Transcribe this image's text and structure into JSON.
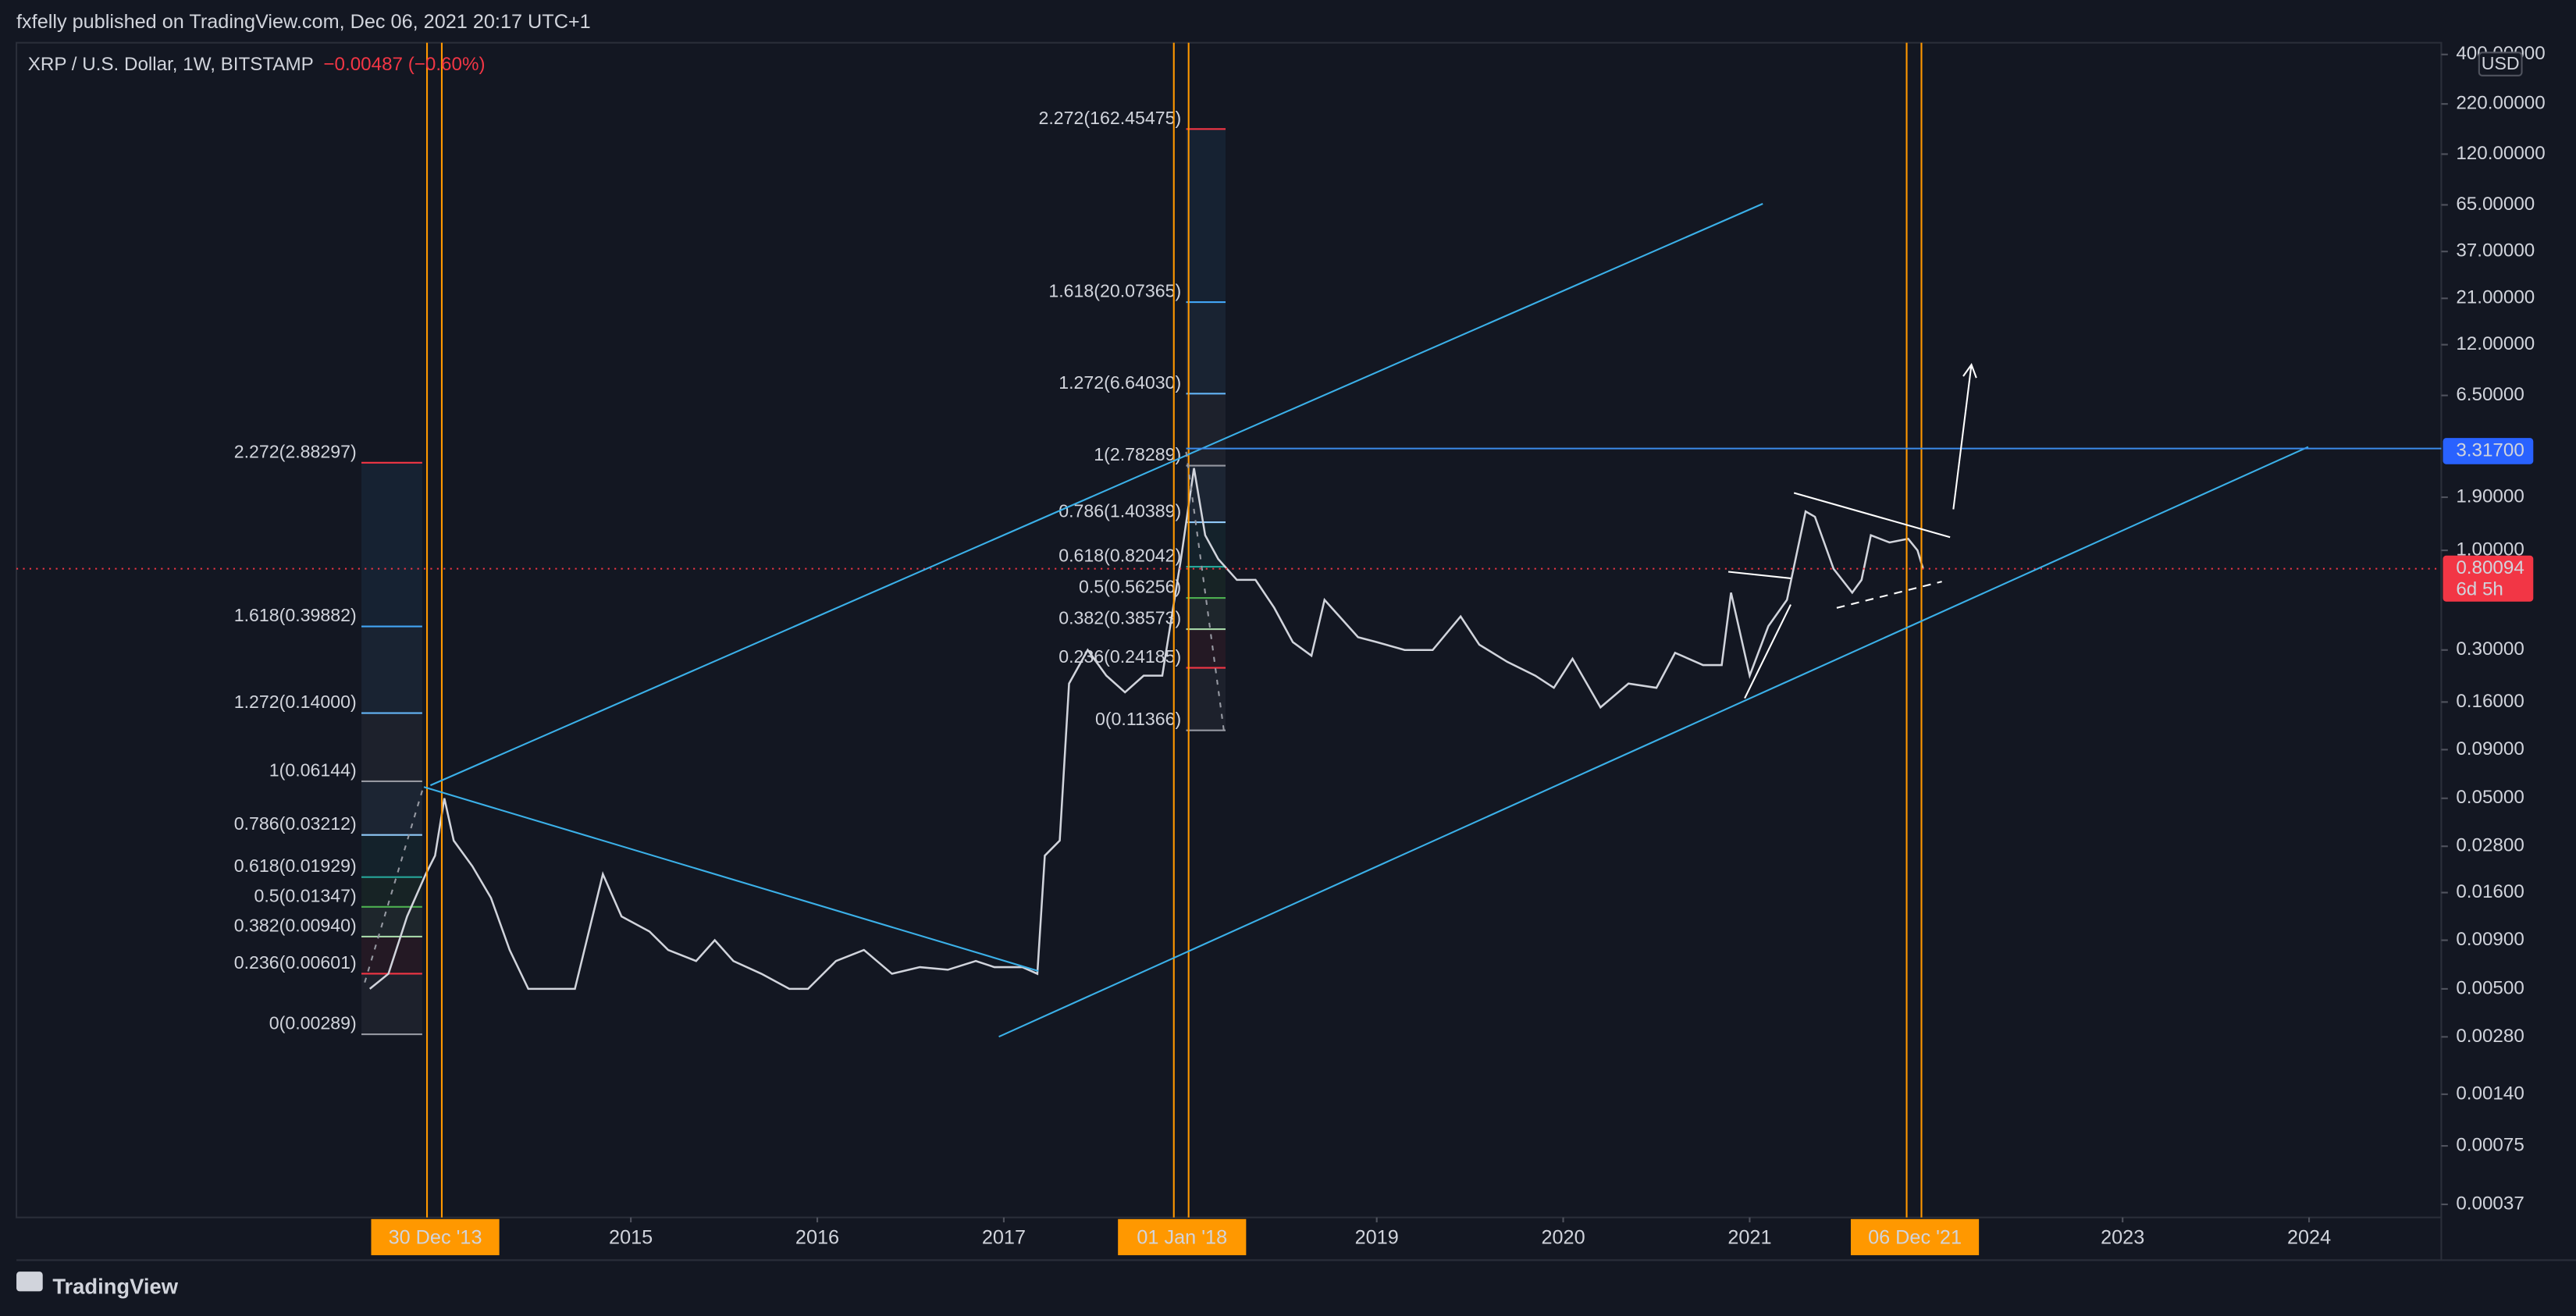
{
  "header": {
    "publisher": "fxfelly published on TradingView.com, Dec 06, 2021 20:17 UTC+1"
  },
  "chart_data": {
    "type": "line",
    "title": "XRP / U.S. Dollar, 1W, BITSTAMP",
    "change": "−0.00487 (−0.60%)",
    "currency": "USD",
    "log_scale": true,
    "color": "#d1d4dc",
    "x": [
      2013.6,
      2013.7,
      2013.8,
      2013.9,
      2013.95,
      2014.0,
      2014.05,
      2014.15,
      2014.25,
      2014.35,
      2014.45,
      2014.55,
      2014.7,
      2014.85,
      2014.95,
      2015.1,
      2015.2,
      2015.35,
      2015.45,
      2015.55,
      2015.7,
      2015.85,
      2015.95,
      2016.1,
      2016.25,
      2016.4,
      2016.55,
      2016.7,
      2016.85,
      2016.95,
      2017.1,
      2017.18,
      2017.22,
      2017.3,
      2017.35,
      2017.45,
      2017.55,
      2017.65,
      2017.75,
      2017.85,
      2017.95,
      2018.02,
      2018.08,
      2018.15,
      2018.25,
      2018.35,
      2018.45,
      2018.55,
      2018.65,
      2018.72,
      2018.8,
      2018.9,
      2019.0,
      2019.15,
      2019.3,
      2019.45,
      2019.55,
      2019.7,
      2019.85,
      2019.95,
      2020.05,
      2020.2,
      2020.35,
      2020.5,
      2020.6,
      2020.75,
      2020.85,
      2020.9,
      2021.0,
      2021.1,
      2021.2,
      2021.3,
      2021.35,
      2021.45,
      2021.55,
      2021.6,
      2021.65,
      2021.75,
      2021.85,
      2021.9,
      2021.93
    ],
    "values": [
      0.005,
      0.006,
      0.012,
      0.02,
      0.025,
      0.05,
      0.03,
      0.022,
      0.015,
      0.008,
      0.005,
      0.005,
      0.005,
      0.02,
      0.012,
      0.01,
      0.008,
      0.007,
      0.009,
      0.007,
      0.006,
      0.005,
      0.005,
      0.007,
      0.008,
      0.006,
      0.0065,
      0.0063,
      0.007,
      0.0065,
      0.0065,
      0.006,
      0.025,
      0.03,
      0.2,
      0.3,
      0.22,
      0.18,
      0.22,
      0.22,
      0.9,
      2.7,
      1.2,
      0.9,
      0.7,
      0.7,
      0.5,
      0.33,
      0.28,
      0.55,
      0.45,
      0.35,
      0.33,
      0.3,
      0.3,
      0.45,
      0.32,
      0.26,
      0.22,
      0.19,
      0.27,
      0.15,
      0.2,
      0.19,
      0.29,
      0.25,
      0.25,
      0.6,
      0.22,
      0.4,
      0.55,
      1.6,
      1.5,
      0.8,
      0.6,
      0.7,
      1.2,
      1.1,
      1.15,
      1.0,
      0.80094
    ],
    "xlim": [
      2011.705,
      2024.709
    ],
    "xticks": [
      2015,
      2016,
      2017,
      2019,
      2020,
      2021,
      2023,
      2024
    ],
    "x_markers": [
      {
        "value": 2013.995,
        "label": "30 Dec '13"
      },
      {
        "value": 2018.0,
        "label": "01 Jan '18"
      },
      {
        "value": 2021.93,
        "label": "06 Dec '21"
      }
    ],
    "ylim": [
      0.000316,
      461
    ],
    "yticks": [
      {
        "value": 400,
        "label": "400.00000"
      },
      {
        "value": 220,
        "label": "220.00000"
      },
      {
        "value": 120,
        "label": "120.00000"
      },
      {
        "value": 65,
        "label": "65.00000"
      },
      {
        "value": 37,
        "label": "37.00000"
      },
      {
        "value": 21,
        "label": "21.00000"
      },
      {
        "value": 12,
        "label": "12.00000"
      },
      {
        "value": 6.5,
        "label": "6.50000"
      },
      {
        "value": 1.9,
        "label": "1.90000"
      },
      {
        "value": 1,
        "label": "1.00000"
      },
      {
        "value": 0.3,
        "label": "0.30000"
      },
      {
        "value": 0.16,
        "label": "0.16000"
      },
      {
        "value": 0.09,
        "label": "0.09000"
      },
      {
        "value": 0.05,
        "label": "0.05000"
      },
      {
        "value": 0.028,
        "label": "0.02800"
      },
      {
        "value": 0.016,
        "label": "0.01600"
      },
      {
        "value": 0.009,
        "label": "0.00900"
      },
      {
        "value": 0.005,
        "label": "0.00500"
      },
      {
        "value": 0.0028,
        "label": "0.00280"
      },
      {
        "value": 0.0014,
        "label": "0.00140"
      },
      {
        "value": 0.00075,
        "label": "0.00075"
      },
      {
        "value": 0.00037,
        "label": "0.00037"
      }
    ],
    "price_labels": [
      {
        "value": 3.317,
        "label": "3.31700",
        "color": "#2962ff"
      },
      {
        "value": 0.80094,
        "label": "0.80094",
        "color": "#f23645"
      }
    ],
    "countdown": "6d 5h",
    "fib_left": [
      {
        "value": 2.88297,
        "label": "2.272(2.88297)",
        "color": "#f23645"
      },
      {
        "value": 0.39882,
        "label": "1.618(0.39882)",
        "color": "#42a5f5"
      },
      {
        "value": 0.14,
        "label": "1.272(0.14000)",
        "color": "#64b5f6"
      },
      {
        "value": 0.06144,
        "label": "1(0.06144)",
        "color": "#9598a1"
      },
      {
        "value": 0.03212,
        "label": "0.786(0.03212)",
        "color": "#90caf9"
      },
      {
        "value": 0.01929,
        "label": "0.618(0.01929)",
        "color": "#26a69a"
      },
      {
        "value": 0.01347,
        "label": "0.5(0.01347)",
        "color": "#4caf50"
      },
      {
        "value": 0.0094,
        "label": "0.382(0.00940)",
        "color": "#a5d6a7"
      },
      {
        "value": 0.00601,
        "label": "0.236(0.00601)",
        "color": "#f23645"
      },
      {
        "value": 0.00289,
        "label": "0(0.00289)",
        "color": "#9598a1"
      }
    ],
    "fib_right": [
      {
        "value": 162.45475,
        "label": "2.272(162.45475)",
        "color": "#f23645"
      },
      {
        "value": 20.07365,
        "label": "1.618(20.07365)",
        "color": "#42a5f5"
      },
      {
        "value": 6.6403,
        "label": "1.272(6.64030)",
        "color": "#64b5f6"
      },
      {
        "value": 2.78289,
        "label": "1(2.78289)",
        "color": "#9598a1"
      },
      {
        "value": 1.40389,
        "label": "0.786(1.40389)",
        "color": "#90caf9"
      },
      {
        "value": 0.82042,
        "label": "0.618(0.82042)",
        "color": "#26a69a"
      },
      {
        "value": 0.56256,
        "label": "0.5(0.56256)",
        "color": "#4caf50"
      },
      {
        "value": 0.38573,
        "label": "0.382(0.38573)",
        "color": "#a5d6a7"
      },
      {
        "value": 0.24185,
        "label": "0.236(0.24185)",
        "color": "#f23645"
      },
      {
        "value": 0.11366,
        "label": "0(0.11366)",
        "color": "#9598a1"
      }
    ]
  },
  "footer": {
    "brand": "TradingView"
  }
}
